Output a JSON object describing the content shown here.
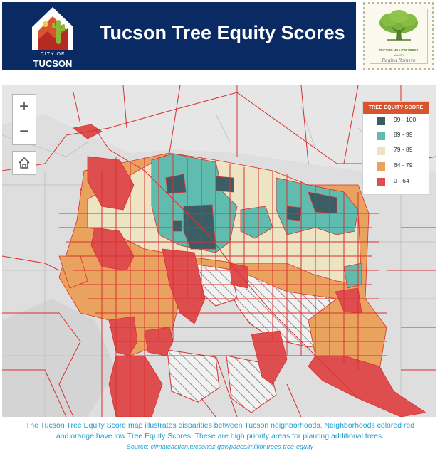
{
  "header": {
    "title": "Tucson Tree Equity Scores",
    "logo_city_text": "CITY OF",
    "logo_name_text": "TUCSON",
    "badge_line1": "TUCSON MILLION TREES",
    "badge_line2": "MAYOR",
    "badge_signature": "Regina Romero"
  },
  "map": {
    "zoom_in_label": "+",
    "zoom_out_label": "−",
    "home_icon": "home-icon",
    "legend": {
      "title": "TREE EQUITY SCORE",
      "items": [
        {
          "label": "99 - 100",
          "color": "#3d5d64"
        },
        {
          "label": "89 - 99",
          "color": "#5fbcae"
        },
        {
          "label": "79 - 89",
          "color": "#ede4c4"
        },
        {
          "label": "64 - 79",
          "color": "#e9a35f"
        },
        {
          "label": "0 - 64",
          "color": "#de4e4e"
        }
      ]
    }
  },
  "caption": {
    "line1": "The Tucson Tree Equity Score map illustrates disparities between Tucson neighborhoods. Neighborhoods colored red",
    "line2": "and orange have low Tree Equity Scores. These are high priority areas for planting additional trees.",
    "source_label": "Source:",
    "source_url": "climateaction.tucsonaz.gov/pages/milliontrees-tree-equity"
  },
  "colors": {
    "banner": "#0a2a63",
    "boundary": "#d83030",
    "accent": "#d9542c",
    "caption_text": "#1d9fcf"
  }
}
